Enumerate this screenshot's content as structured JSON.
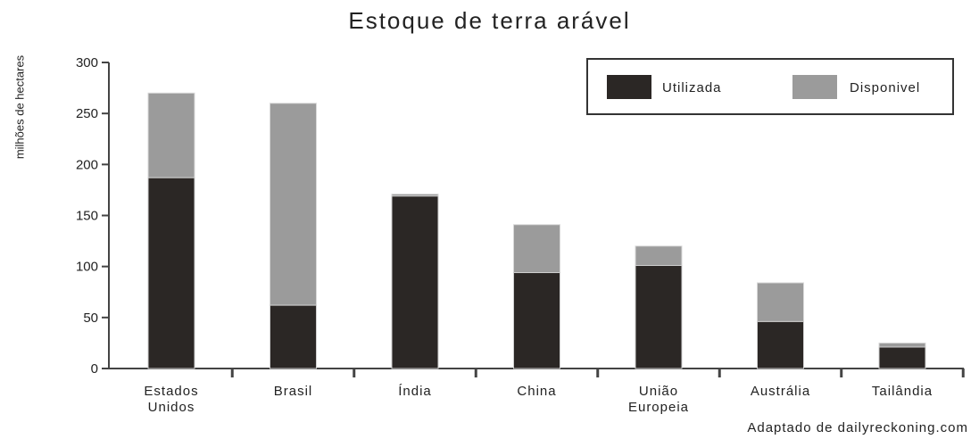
{
  "chart_data": {
    "type": "bar",
    "stacked": true,
    "title": "Estoque de terra arável",
    "xlabel": "",
    "ylabel": "milhões de hectares",
    "ylim": [
      0,
      300
    ],
    "yticks": [
      0,
      50,
      100,
      150,
      200,
      250,
      300
    ],
    "categories": [
      [
        "Estados",
        "Unidos"
      ],
      [
        "Brasil"
      ],
      [
        "Índia"
      ],
      [
        "China"
      ],
      [
        "União",
        "Europeia"
      ],
      [
        "Austrália"
      ],
      [
        "Tailândia"
      ]
    ],
    "series": [
      {
        "name": "Utilizada",
        "color": "#2b2725",
        "values": [
          187,
          62,
          169,
          94,
          101,
          46,
          21
        ]
      },
      {
        "name": "Disponível",
        "color": "#9b9b9b",
        "values": [
          83,
          198,
          2,
          47,
          19,
          38,
          4
        ]
      }
    ],
    "legend": {
      "position": "top-right",
      "labels": [
        "Utilizada",
        "Disponivel"
      ]
    },
    "grid": false
  },
  "source_note": "Adaptado de dailyreckoning.com"
}
